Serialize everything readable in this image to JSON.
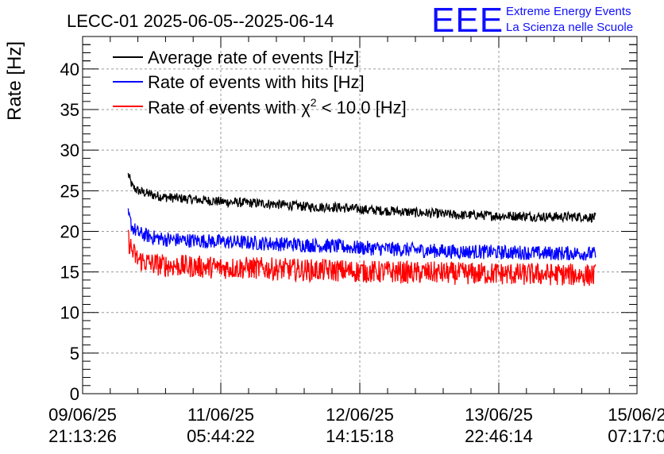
{
  "chart_data": {
    "type": "line",
    "title": "LECC-01 2025-06-05--2025-06-14",
    "ylabel": "Rate [Hz]",
    "xlabel": "",
    "ylim": [
      0,
      44
    ],
    "y_ticks": [
      "0",
      "5",
      "10",
      "15",
      "20",
      "25",
      "30",
      "35",
      "40"
    ],
    "x_ticks": [
      {
        "date": "09/06/25",
        "time": "21:13:26"
      },
      {
        "date": "11/06/25",
        "time": "05:44:22"
      },
      {
        "date": "12/06/25",
        "time": "14:15:18"
      },
      {
        "date": "13/06/25",
        "time": "22:46:14"
      },
      {
        "date": "15/06/2",
        "time": "07:17:0"
      }
    ],
    "xlim_index": [
      0,
      4
    ],
    "grid": true,
    "legend_position": "top-left",
    "series": [
      {
        "name": "Average rate of events [Hz]",
        "color": "#000000",
        "x": [
          0.33,
          0.36,
          0.4,
          0.5,
          0.6,
          0.75,
          0.9,
          1.05,
          1.2,
          1.35,
          1.5,
          1.65,
          1.8,
          1.95,
          2.1,
          2.25,
          2.4,
          2.55,
          2.7,
          2.85,
          3.0,
          3.15,
          3.3,
          3.45,
          3.6,
          3.7
        ],
        "values": [
          27.0,
          25.5,
          25.0,
          24.5,
          24.2,
          24.0,
          23.8,
          23.6,
          23.5,
          23.4,
          23.2,
          23.0,
          23.0,
          22.8,
          22.6,
          22.5,
          22.3,
          22.2,
          22.0,
          22.0,
          21.9,
          21.9,
          21.8,
          21.8,
          21.8,
          21.7
        ],
        "noise": 0.6
      },
      {
        "name": "Rate of events with hits [Hz]",
        "color": "#0000ff",
        "x": [
          0.33,
          0.36,
          0.4,
          0.5,
          0.6,
          0.75,
          0.9,
          1.05,
          1.2,
          1.35,
          1.5,
          1.65,
          1.8,
          1.95,
          2.1,
          2.25,
          2.4,
          2.55,
          2.7,
          2.85,
          3.0,
          3.15,
          3.3,
          3.45,
          3.6,
          3.7
        ],
        "values": [
          22.0,
          20.5,
          19.8,
          19.3,
          19.0,
          18.9,
          18.8,
          18.7,
          18.6,
          18.5,
          18.4,
          18.3,
          18.2,
          18.0,
          17.9,
          17.8,
          17.7,
          17.6,
          17.5,
          17.5,
          17.4,
          17.4,
          17.3,
          17.3,
          17.3,
          17.2
        ],
        "noise": 0.9
      },
      {
        "name": "Rate of events with χ² < 10.0 [Hz]",
        "color": "#ff0000",
        "x": [
          0.33,
          0.36,
          0.4,
          0.5,
          0.6,
          0.75,
          0.9,
          1.05,
          1.2,
          1.35,
          1.5,
          1.65,
          1.8,
          1.95,
          2.1,
          2.25,
          2.4,
          2.55,
          2.7,
          2.85,
          3.0,
          3.15,
          3.3,
          3.45,
          3.6,
          3.7
        ],
        "values": [
          19.0,
          17.5,
          16.5,
          16.0,
          15.8,
          15.7,
          15.6,
          15.5,
          15.5,
          15.4,
          15.3,
          15.2,
          15.2,
          15.1,
          15.0,
          15.0,
          14.9,
          14.9,
          14.8,
          14.8,
          14.8,
          14.7,
          14.7,
          14.7,
          14.6,
          14.6
        ],
        "noise": 1.4
      }
    ],
    "legend": [
      {
        "text": "Average rate of events [Hz]",
        "color": "#000000"
      },
      {
        "text": "Rate of events with hits [Hz]",
        "color": "#0000ff"
      },
      {
        "text_before": "Rate of events with ",
        "symbol": "χ",
        "superscript": "2",
        "text_after": " < 10.0 [Hz]",
        "color": "#ff0000"
      }
    ]
  },
  "logo": {
    "mark": "EEE",
    "line1": "Extreme Energy Events",
    "line2": "La Scienza nelle Scuole",
    "color": "#1010ff"
  }
}
